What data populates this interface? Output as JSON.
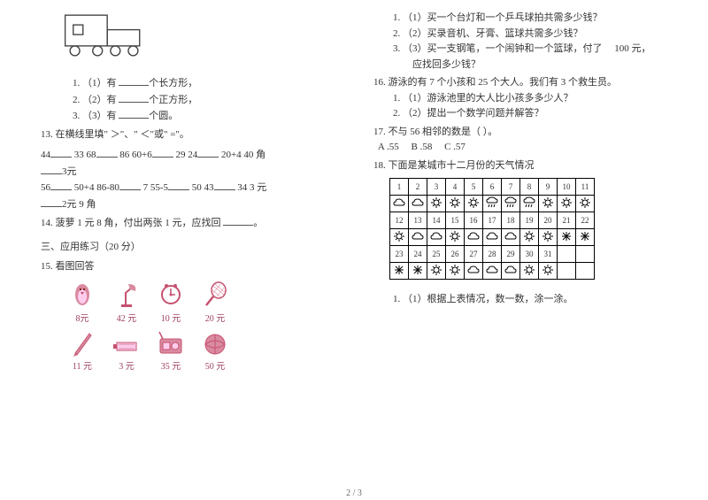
{
  "q12": {
    "l1": "  1.  （1）有 ",
    "l1b": "个长方形，",
    "l2": "  2.  （2）有 ",
    "l2b": "个正方形，",
    "l3": "  3.  （3）有 ",
    "l3b": "个圆。"
  },
  "q13": {
    "title": "13.  在横线里填\" ＞\"、\" ＜\"或\" =\"。",
    "r1a": "44",
    "r1b": "33  68",
    "r1c": "86  60+6",
    "r1d": "29  24",
    "r1e": "20+4  40 角",
    "r1f": "3元",
    "r2a": "56",
    "r2b": "50+4  86-80",
    "r2c": "7  55-5",
    "r2d": "50  43",
    "r2e": "34  3 元",
    "r2f": "2元 9 角"
  },
  "q14": {
    "text": "14.  菠萝 1 元 8 角，付出两张 1 元，应找回 ",
    "tail": "。"
  },
  "sec3": "三、应用练习（20 分）",
  "q15": {
    "title": "15.  看图回答",
    "labels": [
      "8元",
      "42 元",
      "10 元",
      "20 元",
      "11 元",
      "3 元",
      "35 元",
      "50 元"
    ]
  },
  "q15r": {
    "l1": "1.  （1）买一个台灯和一个乒乓球拍共需多少钱？",
    "l2": "2.  （2）买录音机、牙膏、篮球共需多少钱？",
    "l3": "3.  （3）买一支钢笔，一个闹钟和一个篮球，付了",
    "l3b": "100 元，",
    "l3c": "应找回多少钱？"
  },
  "q16": {
    "title": "16.  游泳的有 7 个小孩和 25 个大人。我们有 3 个救生员。",
    "l1": "1.  （1）游泳池里的大人比小孩多多少人？",
    "l2": "2.  （2）提出一个数学问题并解答？"
  },
  "q17": {
    "title": "17.  不与 56 相邻的数是（        ）。",
    "opts": "  A .55     B .58     C .57"
  },
  "q18": {
    "title": "18.  下面是某城市十二月份的天气情况",
    "days_r1": [
      "1",
      "2",
      "3",
      "4",
      "5",
      "6",
      "7",
      "8",
      "9",
      "10",
      "11"
    ],
    "days_r2": [
      "12",
      "13",
      "14",
      "15",
      "16",
      "17",
      "18",
      "19",
      "20",
      "21",
      "22"
    ],
    "days_r3": [
      "23",
      "24",
      "25",
      "26",
      "27",
      "28",
      "29",
      "30",
      "31",
      "",
      ""
    ],
    "icons_r1": [
      "cloud",
      "cloud",
      "sun",
      "sun",
      "sun",
      "rain",
      "rain",
      "rain",
      "sun",
      "sun",
      "sun"
    ],
    "icons_r2": [
      "sun",
      "cloud",
      "cloud",
      "sun",
      "cloud",
      "cloud",
      "cloud",
      "sun",
      "sun",
      "snow",
      "snow"
    ],
    "icons_r3": [
      "snow",
      "snow",
      "sun",
      "sun",
      "cloud",
      "cloud",
      "cloud",
      "sun",
      "sun",
      "",
      ""
    ],
    "foot": "1.  （1）根据上表情况，数一数，涂一涂。"
  },
  "pagenum": "2 / 3",
  "colors": {
    "pink": "#c6516f",
    "pink_fill": "#d98aa0",
    "line": "#555555",
    "text": "#333333"
  }
}
